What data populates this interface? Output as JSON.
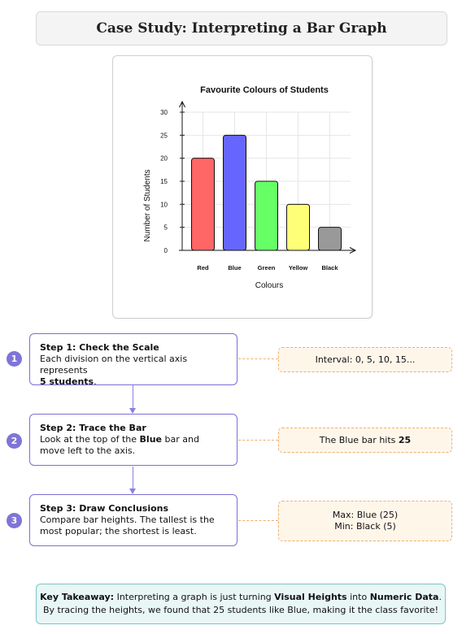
{
  "header": {
    "title": "Case Study: Interpreting a Bar Graph"
  },
  "chart_data": {
    "type": "bar",
    "title": "Favourite Colours of Students",
    "xlabel": "Colours",
    "ylabel": "Number of Students",
    "categories": [
      "Red",
      "Blue",
      "Green",
      "Yellow",
      "Black"
    ],
    "values": [
      20,
      25,
      15,
      10,
      5
    ],
    "colors": [
      "#ff6666",
      "#6666ff",
      "#66ff66",
      "#ffff77",
      "#999999"
    ],
    "ylim": [
      0,
      30
    ],
    "yticks": [
      0,
      5,
      10,
      15,
      20,
      25,
      30
    ],
    "grid": true,
    "legend": "none"
  },
  "steps": [
    {
      "num": "1",
      "title": "Step 1: Check the Scale",
      "body_1": "Each division on the vertical axis represents",
      "body_bold": "5 students",
      "body_2": "."
    },
    {
      "num": "2",
      "title": "Step 2: Trace the Bar",
      "body_1": "Look at the top of the",
      "body_bold": "Blue",
      "body_2": "bar and move left to the axis."
    },
    {
      "num": "3",
      "title": "Step 3: Draw Conclusions",
      "body_1": "Compare bar heights. The tallest is the most popular; the shortest is least."
    }
  ],
  "notes": [
    {
      "text": "Interval: 0, 5, 10, 15..."
    },
    {
      "text": "The Blue bar hits",
      "bold": "25"
    },
    {
      "line1": "Max: Blue (25)",
      "line2": "Min: Black (5)"
    }
  ],
  "takeaway": {
    "label": "Key Takeaway:",
    "t1": "Interpreting a graph is just turning",
    "b1": "Visual Heights",
    "t2": "into",
    "b2": "Numeric Data",
    "t3": ".",
    "line2": "By tracing the heights, we found that 25 students like Blue, making it the class favorite!"
  }
}
